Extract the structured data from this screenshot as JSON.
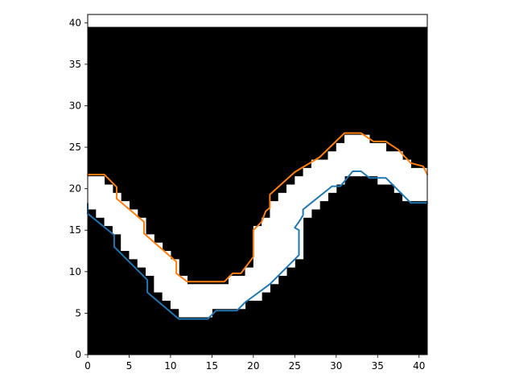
{
  "chart_data": {
    "type": "heatmap",
    "description_free": true,
    "title": "",
    "xlabel": "",
    "ylabel": "",
    "xlim": [
      0,
      41
    ],
    "ylim": [
      0,
      41
    ],
    "x_ticks": [
      "0",
      "5",
      "10",
      "15",
      "20",
      "25",
      "30",
      "35",
      "40"
    ],
    "y_ticks": [
      "0",
      "5",
      "10",
      "15",
      "20",
      "25",
      "30",
      "35",
      "40"
    ],
    "image": {
      "colors": {
        "background": "#000000",
        "band": "#ffffff",
        "top_strip": "#ffffff"
      },
      "top_strip_from_y": 39.5,
      "band_lower_edge": [
        [
          0,
          17.5
        ],
        [
          1,
          16.5
        ],
        [
          2,
          15.5
        ],
        [
          3,
          14.5
        ],
        [
          4,
          12.5
        ],
        [
          5,
          11.5
        ],
        [
          6,
          10.5
        ],
        [
          7,
          9.5
        ],
        [
          8,
          7.5
        ],
        [
          9,
          6.5
        ],
        [
          10,
          5.5
        ],
        [
          11,
          4.5
        ],
        [
          12,
          4.5
        ],
        [
          13,
          4.5
        ],
        [
          14,
          4.5
        ],
        [
          15,
          5.5
        ],
        [
          16,
          5.5
        ],
        [
          17,
          5.5
        ],
        [
          18,
          5.5
        ],
        [
          19,
          6.5
        ],
        [
          20,
          6.5
        ],
        [
          21,
          7.5
        ],
        [
          22,
          8.5
        ],
        [
          23,
          9.5
        ],
        [
          24,
          10.5
        ],
        [
          25,
          11.5
        ],
        [
          26,
          16.5
        ],
        [
          27,
          17.5
        ],
        [
          28,
          18.5
        ],
        [
          29,
          19.5
        ],
        [
          30,
          20.5
        ],
        [
          31,
          21.5
        ],
        [
          32,
          21.5
        ],
        [
          33,
          21.5
        ],
        [
          34,
          21.5
        ],
        [
          35,
          20.5
        ],
        [
          36,
          20.5
        ],
        [
          37,
          19.5
        ],
        [
          38,
          18.5
        ],
        [
          39,
          18.5
        ],
        [
          40,
          18.5
        ]
      ],
      "band_upper_edge": [
        [
          0,
          21.5
        ],
        [
          1,
          21.5
        ],
        [
          2,
          20.5
        ],
        [
          3,
          19.5
        ],
        [
          4,
          18.5
        ],
        [
          5,
          17.5
        ],
        [
          6,
          16.5
        ],
        [
          7,
          14.5
        ],
        [
          8,
          13.5
        ],
        [
          9,
          12.5
        ],
        [
          10,
          11.5
        ],
        [
          11,
          9.5
        ],
        [
          12,
          8.5
        ],
        [
          13,
          8.5
        ],
        [
          14,
          8.5
        ],
        [
          15,
          8.5
        ],
        [
          16,
          8.5
        ],
        [
          17,
          9.5
        ],
        [
          18,
          9.5
        ],
        [
          19,
          10.5
        ],
        [
          20,
          15.5
        ],
        [
          21,
          16.5
        ],
        [
          22,
          18.5
        ],
        [
          23,
          19.5
        ],
        [
          24,
          20.5
        ],
        [
          25,
          21.5
        ],
        [
          26,
          22.5
        ],
        [
          27,
          23.5
        ],
        [
          28,
          23.5
        ],
        [
          29,
          24.5
        ],
        [
          30,
          25.5
        ],
        [
          31,
          26.5
        ],
        [
          32,
          26.5
        ],
        [
          33,
          26.5
        ],
        [
          34,
          25.5
        ],
        [
          35,
          25.5
        ],
        [
          36,
          24.5
        ],
        [
          37,
          24.5
        ],
        [
          38,
          23.5
        ],
        [
          39,
          22.5
        ],
        [
          40,
          22.5
        ]
      ]
    },
    "series": [
      {
        "color": "#ff7f0e",
        "x": [
          0,
          2,
          3.5,
          3.5,
          6.8,
          6.8,
          10.7,
          10.7,
          12,
          16.5,
          17.5,
          18.5,
          20,
          20,
          21,
          21.5,
          22,
          22,
          25,
          28,
          31,
          33,
          34.5,
          36,
          37.5,
          39,
          40.5,
          41
        ],
        "y": [
          21.7,
          21.7,
          20.2,
          18.8,
          16,
          14.6,
          11.2,
          9.8,
          8.8,
          8.8,
          9.8,
          9.8,
          11.8,
          15,
          16,
          17.3,
          17.7,
          19.3,
          22,
          23.8,
          26.7,
          26.7,
          25.7,
          25.7,
          24.7,
          23.1,
          22.7,
          21.7
        ]
      },
      {
        "color": "#1f77b4",
        "x": [
          0,
          0,
          3.2,
          3.2,
          7.2,
          7.2,
          11,
          14.5,
          15.5,
          18,
          19,
          22,
          25.5,
          25.5,
          25,
          25.5,
          26,
          26,
          29.5,
          30.5,
          32,
          33,
          34,
          36,
          37,
          38,
          39,
          41
        ],
        "y": [
          18.2,
          17,
          14.4,
          13,
          9,
          7.5,
          4.3,
          4.3,
          5.3,
          5.3,
          6.3,
          8.5,
          12,
          15,
          15.3,
          16,
          16.8,
          17.5,
          20.3,
          20.3,
          22.1,
          22.1,
          21.3,
          21.3,
          20.3,
          19.3,
          18.3,
          18.3
        ]
      }
    ],
    "grid": false,
    "legend": "none"
  }
}
